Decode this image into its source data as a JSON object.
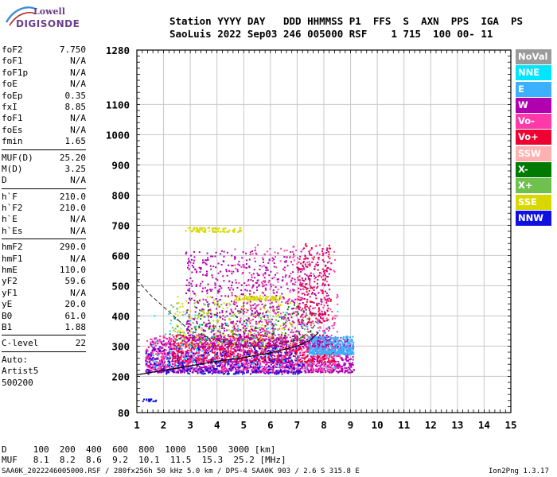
{
  "logo": {
    "top": "Lowell",
    "bottom": "DIGISONDE"
  },
  "header": {
    "line1": "Station YYYY DAY   DDD HHMMSS P1  FFS  S  AXN  PPS  IGA  PS",
    "line2": "SaoLuis 2022 Sep03 246 005000 RSF    1 715  100 00- 11"
  },
  "params": [
    [
      {
        "name": "foF2",
        "value": "7.750"
      },
      {
        "name": "foF1",
        "value": "N/A"
      },
      {
        "name": "foF1p",
        "value": "N/A"
      },
      {
        "name": "foE",
        "value": "N/A"
      },
      {
        "name": "foEp",
        "value": "0.35"
      },
      {
        "name": "fxI",
        "value": "8.85"
      },
      {
        "name": "foF1",
        "value": "N/A"
      },
      {
        "name": "foEs",
        "value": "N/A"
      },
      {
        "name": "fmin",
        "value": "1.65"
      }
    ],
    [
      {
        "name": "MUF(D)",
        "value": "25.20"
      },
      {
        "name": "M(D)",
        "value": "3.25"
      },
      {
        "name": "D",
        "value": "N/A"
      }
    ],
    [
      {
        "name": "h`F",
        "value": "210.0"
      },
      {
        "name": "h`F2",
        "value": "210.0"
      },
      {
        "name": "h`E",
        "value": "N/A"
      },
      {
        "name": "h`Es",
        "value": "N/A"
      }
    ],
    [
      {
        "name": "hmF2",
        "value": "290.0"
      },
      {
        "name": "hmF1",
        "value": "N/A"
      },
      {
        "name": "hmE",
        "value": "110.0"
      },
      {
        "name": "yF2",
        "value": "59.6"
      },
      {
        "name": "yF1",
        "value": "N/A"
      },
      {
        "name": "yE",
        "value": "20.0"
      },
      {
        "name": "B0",
        "value": "61.0"
      },
      {
        "name": "B1",
        "value": "1.88"
      }
    ],
    [
      {
        "name": "C-level",
        "value": "22"
      }
    ]
  ],
  "auto": [
    "Auto:",
    "Artist5",
    "500200"
  ],
  "legend": [
    {
      "label": "NoVal",
      "color": "#9a9a9a"
    },
    {
      "label": "NNE",
      "color": "#00e5ff"
    },
    {
      "label": "E",
      "color": "#3ab0ff"
    },
    {
      "label": "W",
      "color": "#b000b0"
    },
    {
      "label": "Vo-",
      "color": "#ff3aa8"
    },
    {
      "label": "Vo+",
      "color": "#ee0033"
    },
    {
      "label": "SSW",
      "color": "#ffb0b0"
    },
    {
      "label": "X-",
      "color": "#007a00"
    },
    {
      "label": "X+",
      "color": "#70c050"
    },
    {
      "label": "SSE",
      "color": "#d8d800"
    },
    {
      "label": "NNW",
      "color": "#1010e0"
    }
  ],
  "bottom": {
    "line1": "D     100  200  400  600  800  1000  1500  3000 [km]",
    "line2": "MUF   8.1  8.2  8.6  9.2  10.1  11.5  15.3  25.2 [MHz]"
  },
  "footer": {
    "left": "SAA0K_2022246005000.RSF / 280fx256h 50 kHz 5.0 km / DPS-4 SAA0K 903 / 2.6 S 315.8 E",
    "right": "Ion2Png 1.3.17"
  },
  "chart_data": {
    "type": "scatter",
    "x": {
      "min": 1,
      "max": 15,
      "ticks": [
        1,
        2,
        3,
        4,
        5,
        6,
        7,
        8,
        9,
        10,
        11,
        12,
        13,
        14,
        15
      ]
    },
    "y": {
      "min": 80,
      "max": 1280,
      "ticks": [
        80,
        200,
        300,
        400,
        500,
        600,
        700,
        800,
        900,
        1000,
        1100,
        1280
      ]
    },
    "grid": true,
    "profile": [
      [
        1.0,
        205
      ],
      [
        2.0,
        220
      ],
      [
        3.0,
        235
      ],
      [
        4.0,
        250
      ],
      [
        5.0,
        262
      ],
      [
        6.0,
        278
      ],
      [
        7.0,
        300
      ],
      [
        7.5,
        320
      ],
      [
        7.8,
        345
      ]
    ],
    "trace_virtual": [
      [
        1.0,
        520
      ],
      [
        1.5,
        470
      ],
      [
        2.0,
        430
      ],
      [
        2.5,
        390
      ],
      [
        3.0,
        350
      ],
      [
        4.0,
        320
      ],
      [
        5.0,
        300
      ],
      [
        6.0,
        300
      ],
      [
        7.0,
        320
      ],
      [
        7.5,
        350
      ],
      [
        7.75,
        380
      ]
    ],
    "groups": [
      {
        "color": "#b000b0",
        "x": [
          1.3,
          9.1
        ],
        "y": [
          215,
          330
        ],
        "n": 1500
      },
      {
        "color": "#ff3aa8",
        "x": [
          1.3,
          8.6
        ],
        "y": [
          220,
          340
        ],
        "n": 900
      },
      {
        "color": "#ee0033",
        "x": [
          2.3,
          8.4
        ],
        "y": [
          250,
          340
        ],
        "n": 500
      },
      {
        "color": "#3ab0ff",
        "x": [
          7.4,
          9.1
        ],
        "y": [
          275,
          335
        ],
        "n": 400
      },
      {
        "color": "#1010e0",
        "x": [
          1.3,
          7.2
        ],
        "y": [
          210,
          300
        ],
        "n": 350
      },
      {
        "color": "#70c050",
        "x": [
          2.2,
          7.6
        ],
        "y": [
          320,
          450
        ],
        "n": 150
      },
      {
        "color": "#007a00",
        "x": [
          2.2,
          7.6
        ],
        "y": [
          320,
          440
        ],
        "n": 110
      },
      {
        "color": "#d8d800",
        "x": [
          2.4,
          6.8
        ],
        "y": [
          300,
          470
        ],
        "n": 200
      },
      {
        "color": "#b000b0",
        "x": [
          2.8,
          8.2
        ],
        "y": [
          300,
          620
        ],
        "n": 900
      },
      {
        "color": "#ff3aa8",
        "x": [
          4.5,
          8.5
        ],
        "y": [
          350,
          640
        ],
        "n": 260
      },
      {
        "color": "#00e5ff",
        "x": [
          1.5,
          8.5
        ],
        "y": [
          230,
          420
        ],
        "n": 120
      },
      {
        "color": "#d8d800",
        "x": [
          2.8,
          4.9
        ],
        "y": [
          680,
          695
        ],
        "n": 90
      },
      {
        "color": "#d8d800",
        "x": [
          4.6,
          6.4
        ],
        "y": [
          455,
          470
        ],
        "n": 80
      },
      {
        "color": "#ee0033",
        "x": [
          7.0,
          8.3
        ],
        "y": [
          380,
          650
        ],
        "n": 160
      },
      {
        "color": "#1010e0",
        "x": [
          1.2,
          1.7
        ],
        "y": [
          120,
          128
        ],
        "n": 20
      }
    ]
  }
}
